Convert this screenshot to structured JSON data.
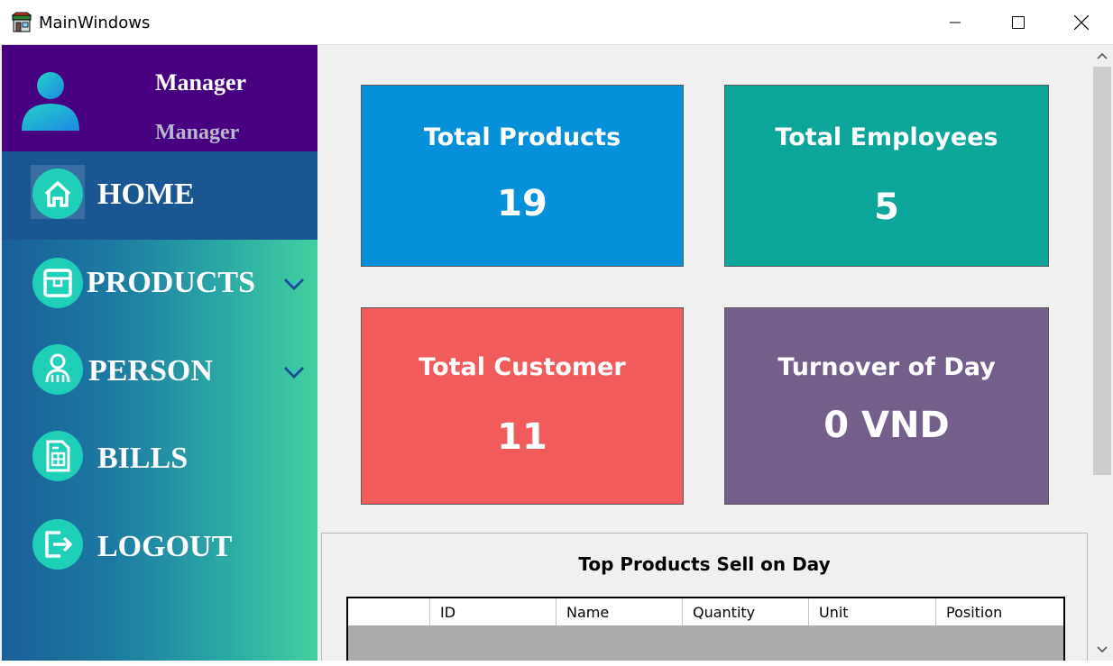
{
  "window": {
    "title": "MainWindows"
  },
  "profile": {
    "name": "Manager",
    "role": "Manager"
  },
  "nav": {
    "home": "HOME",
    "products": "PRODUCTS",
    "person": "PERSON",
    "bills": "BILLS",
    "logout": "LOGOUT"
  },
  "cards": {
    "products": {
      "title": "Total Products",
      "value": "19"
    },
    "employees": {
      "title": "Total Employees",
      "value": "5"
    },
    "customer": {
      "title": "Total Customer",
      "value": "11"
    },
    "turnover": {
      "title": "Turnover of Day",
      "value": "0 VND"
    }
  },
  "top_products": {
    "title": "Top Products Sell on Day",
    "columns": [
      "ID",
      "Name",
      "Quantity",
      "Unit",
      "Position"
    ]
  },
  "colors": {
    "profile_bg": "#47007f",
    "products_card": "#0590d9",
    "employees_card": "#0ca59a",
    "customer_card": "#f15b5b",
    "turnover_card": "#745f8a"
  },
  "icons": {
    "app": "store-icon",
    "avatar": "user-avatar-icon",
    "home": "home-icon",
    "products": "box-icon",
    "person": "people-icon",
    "bills": "bill-document-icon",
    "logout": "logout-icon"
  }
}
